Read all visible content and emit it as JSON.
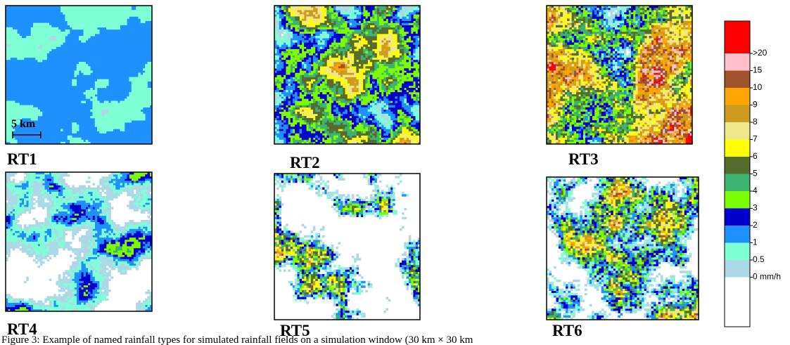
{
  "figure": {
    "panels": [
      {
        "label": "RT1"
      },
      {
        "label": "RT2"
      },
      {
        "label": "RT3"
      },
      {
        "label": "RT4"
      },
      {
        "label": "RT5"
      },
      {
        "label": "RT6"
      }
    ],
    "scale_bar": "5 km",
    "legend": {
      "colors": [
        "#ff0000",
        "#ffc0cb",
        "#a0522d",
        "#ffa500",
        "#cd9b1d",
        "#f0e68c",
        "#ffff00",
        "#556b2f",
        "#3cb371",
        "#7cfc00",
        "#0000cd",
        "#1e90ff",
        "#7fffd4",
        "#add8e6",
        "#ffffff"
      ],
      "labels": [
        ">20",
        "15",
        "10",
        "9",
        "8",
        "7",
        "6",
        "5",
        "4",
        "3",
        "2",
        "1",
        "0.5",
        "0 mm/h"
      ]
    },
    "caption": "Figure 3: Example of named rainfall types for simulated rainfall fields on a simulation window (30 km × 30 km"
  }
}
